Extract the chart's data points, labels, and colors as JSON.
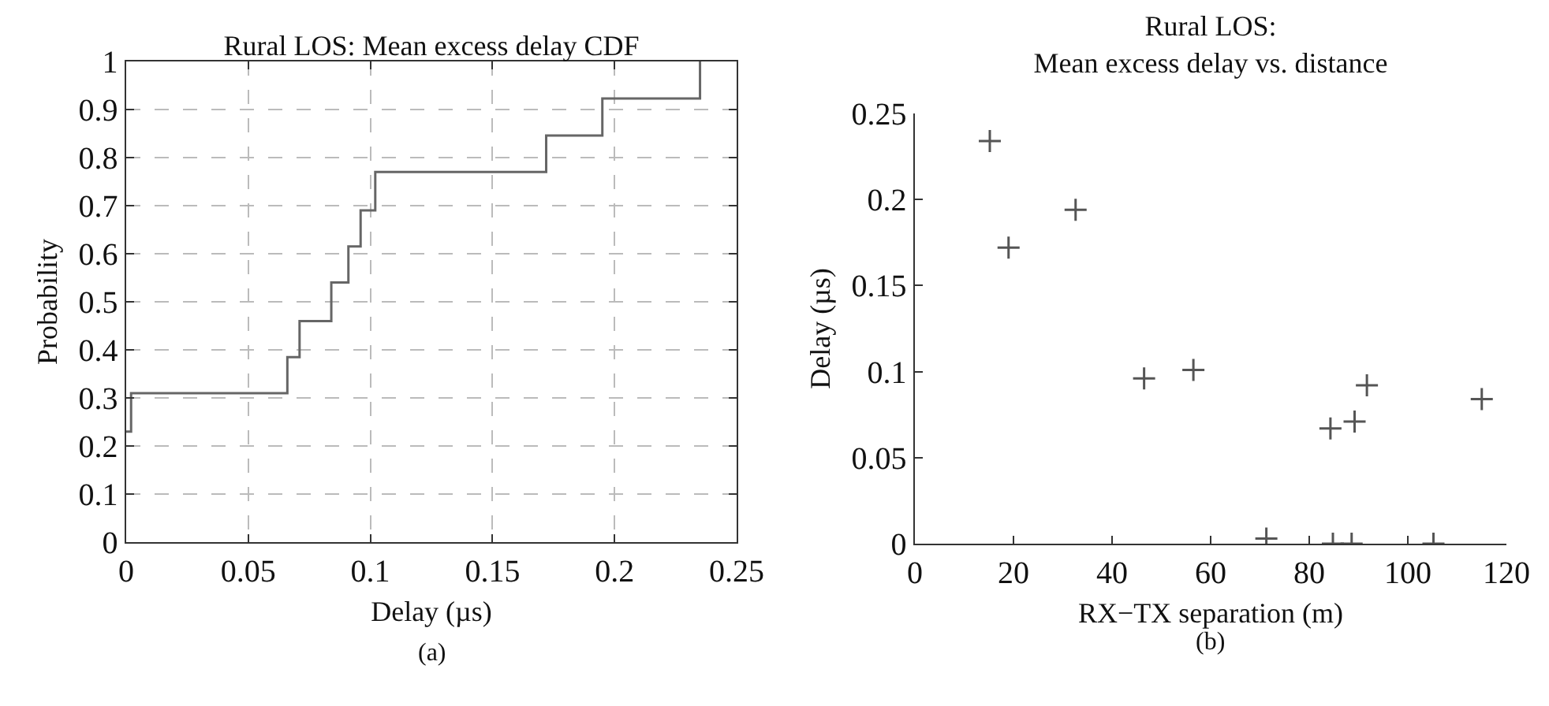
{
  "chart_data": [
    {
      "type": "step",
      "title": "Rural LOS: Mean excess delay CDF",
      "xlabel": "Delay (µs)",
      "ylabel": "Probability",
      "annotations": [
        "(a)"
      ],
      "color": "#666666",
      "line_style": "solid",
      "grid": true,
      "x": [
        0,
        0.002,
        0.066,
        0.071,
        0.084,
        0.091,
        0.096,
        0.102,
        0.172,
        0.195,
        0.235
      ],
      "values": [
        0.23,
        0.31,
        0.385,
        0.46,
        0.54,
        0.615,
        0.69,
        0.77,
        0.846,
        0.923,
        1.0
      ],
      "xlim": [
        0,
        0.25
      ],
      "xticks": [
        0,
        0.05,
        0.1,
        0.15,
        0.2,
        0.25
      ],
      "ylim": [
        0,
        1
      ],
      "yticks": [
        0,
        0.1,
        0.2,
        0.3,
        0.4,
        0.5,
        0.6,
        0.7,
        0.8,
        0.9,
        1
      ]
    },
    {
      "type": "scatter",
      "title": "Rural LOS:\nMean excess delay vs. distance",
      "xlabel": "RX−TX separation (m)",
      "ylabel": "Delay (µs)",
      "annotations": [
        "(b)"
      ],
      "color": "#555555",
      "marker": "cross",
      "grid": false,
      "x": [
        15.2,
        19.0,
        32.6,
        46.5,
        56.5,
        71.3,
        84.3,
        84.8,
        88.6,
        89.2,
        91.7,
        105.2,
        115.0
      ],
      "values": [
        0.234,
        0.172,
        0.194,
        0.096,
        0.101,
        0.003,
        0.067,
        0,
        0,
        0.071,
        0.092,
        0,
        0.084
      ],
      "xlim": [
        0,
        120
      ],
      "xticks": [
        0,
        20,
        40,
        60,
        80,
        100,
        120
      ],
      "ylim": [
        0,
        0.25
      ],
      "yticks": [
        0,
        0.05,
        0.1,
        0.15,
        0.2,
        0.25
      ]
    }
  ]
}
